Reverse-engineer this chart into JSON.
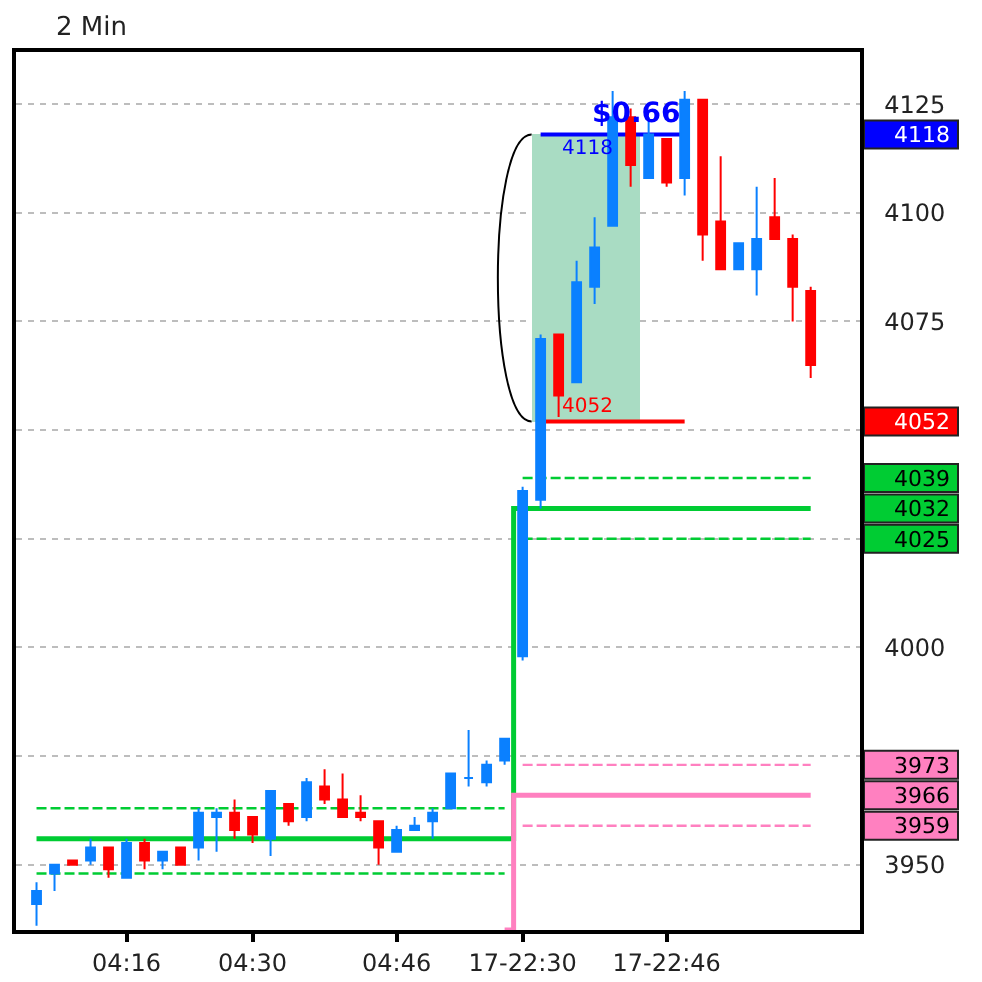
{
  "chart_data": {
    "type": "candlestick",
    "title": "2 Min",
    "categories": [
      null,
      null,
      null,
      null,
      null,
      "04:16",
      null,
      null,
      null,
      null,
      null,
      null,
      "04:30",
      null,
      null,
      null,
      null,
      null,
      null,
      null,
      "04:46",
      null,
      null,
      null,
      null,
      null,
      null,
      "17-22:30",
      null,
      null,
      null,
      null,
      null,
      null,
      null,
      "17-22:46",
      null,
      null,
      null,
      null,
      null,
      null,
      null,
      null
    ],
    "ohlc": [
      [
        3941,
        3946,
        3936,
        3944
      ],
      [
        3948,
        3950,
        3944,
        3950
      ],
      [
        3951,
        3951,
        3950,
        3950
      ],
      [
        3951,
        3956,
        3950,
        3954
      ],
      [
        3954,
        3954,
        3947,
        3949
      ],
      [
        3947,
        3956,
        3947,
        3955
      ],
      [
        3955,
        3956,
        3949,
        3951
      ],
      [
        3951,
        3953,
        3949,
        3953
      ],
      [
        3954,
        3954,
        3950,
        3950
      ],
      [
        3954,
        3963,
        3951,
        3962
      ],
      [
        3961,
        3963,
        3953,
        3962
      ],
      [
        3962,
        3965,
        3956,
        3958
      ],
      [
        3961,
        3961,
        3955,
        3957
      ],
      [
        3956,
        3967,
        3952,
        3967
      ],
      [
        3964,
        3964,
        3959,
        3960
      ],
      [
        3961,
        3970,
        3960,
        3969
      ],
      [
        3968,
        3972,
        3964,
        3965
      ],
      [
        3965,
        3971,
        3961,
        3961
      ],
      [
        3962,
        3966,
        3960,
        3961
      ],
      [
        3960,
        3960,
        3950,
        3954
      ],
      [
        3953,
        3959,
        3953,
        3958
      ],
      [
        3958,
        3961,
        3958,
        3959
      ],
      [
        3960,
        3963,
        3956,
        3962
      ],
      [
        3963,
        3971,
        3963,
        3971
      ],
      [
        3970,
        3981,
        3968,
        3970
      ],
      [
        3969,
        3974,
        3968,
        3973
      ],
      [
        3974,
        3979,
        3973,
        3979
      ],
      [
        3998,
        4037,
        3997,
        4036
      ],
      [
        4034,
        4072,
        4032,
        4071
      ],
      [
        4072,
        4072,
        4053,
        4058
      ],
      [
        4061,
        4089,
        4061,
        4084
      ],
      [
        4083,
        4099,
        4079,
        4092
      ],
      [
        4097,
        4128,
        4097,
        4122
      ],
      [
        4122,
        4124,
        4106,
        4111
      ],
      [
        4108,
        4122,
        4108,
        4118
      ],
      [
        4117,
        4117,
        4106,
        4107
      ],
      [
        4108,
        4128,
        4104,
        4126
      ],
      [
        4126,
        4126,
        4089,
        4095
      ],
      [
        4098,
        4113,
        4087,
        4087
      ],
      [
        4087,
        4093,
        4087,
        4093
      ],
      [
        4087,
        4106,
        4081,
        4094
      ],
      [
        4099,
        4108,
        4094,
        4094
      ],
      [
        4094,
        4095,
        4075,
        4083
      ],
      [
        4082,
        4083,
        4062,
        4065
      ]
    ],
    "colors": [
      "#0a80ff",
      "#0a80ff",
      "#ff0000",
      "#0a80ff",
      "#ff0000",
      "#0a80ff",
      "#ff0000",
      "#0a80ff",
      "#ff0000",
      "#0a80ff",
      "#0a80ff",
      "#ff0000",
      "#ff0000",
      "#0a80ff",
      "#ff0000",
      "#0a80ff",
      "#ff0000",
      "#ff0000",
      "#ff0000",
      "#ff0000",
      "#0a80ff",
      "#0a80ff",
      "#0a80ff",
      "#0a80ff",
      "#0a80ff",
      "#0a80ff",
      "#0a80ff",
      "#0a80ff",
      "#0a80ff",
      "#ff0000",
      "#0a80ff",
      "#0a80ff",
      "#0a80ff",
      "#ff0000",
      "#0a80ff",
      "#ff0000",
      "#0a80ff",
      "#ff0000",
      "#ff0000",
      "#0a80ff",
      "#0a80ff",
      "#ff0000",
      "#ff0000",
      "#ff0000"
    ],
    "series": [
      {
        "type": "bar",
        "color": "#a9dcc3",
        "values": [
          null,
          null,
          null,
          null,
          null,
          null,
          null,
          null,
          null,
          null,
          null,
          null,
          null,
          null,
          null,
          null,
          null,
          null,
          null,
          null,
          null,
          null,
          null,
          null,
          null,
          null,
          null,
          null,
          66,
          66,
          66,
          66,
          66,
          66,
          null,
          null,
          null,
          null,
          null,
          null,
          null,
          null,
          null,
          null
        ],
        "base": [
          null,
          null,
          null,
          null,
          null,
          null,
          null,
          null,
          null,
          null,
          null,
          null,
          null,
          null,
          null,
          null,
          null,
          null,
          null,
          null,
          null,
          null,
          null,
          null,
          null,
          null,
          null,
          null,
          4052,
          4052,
          4052,
          4052,
          4052,
          4052,
          null,
          null,
          null,
          null,
          null,
          null,
          null,
          null,
          null,
          null
        ]
      },
      {
        "type": "step",
        "color": "#00cc33",
        "line_style": "solid",
        "axis": "y2",
        "values": [
          3956,
          3956,
          3956,
          3956,
          3956,
          3956,
          3956,
          3956,
          3956,
          3956,
          3956,
          3956,
          3956,
          3956,
          3956,
          3956,
          3956,
          3956,
          3956,
          3956,
          3956,
          3956,
          3956,
          3956,
          3956,
          3956,
          3956,
          4032,
          4032,
          4032,
          4032,
          4032,
          4032,
          4032,
          4032,
          4032,
          4032,
          4032,
          4032,
          4032,
          4032,
          4032,
          4032,
          4032
        ]
      },
      {
        "type": "line",
        "color": "#00cc33",
        "line_style": "dashed",
        "values": [
          3963,
          3963,
          3963,
          3963,
          3963,
          3963,
          3963,
          3963,
          3963,
          3963,
          3963,
          3963,
          3963,
          3963,
          3963,
          3963,
          3963,
          3963,
          3963,
          3963,
          3963,
          3963,
          3963,
          3963,
          3963,
          3963,
          3963,
          null,
          null,
          null,
          null,
          null,
          null,
          null,
          null,
          null,
          null,
          null,
          null,
          null,
          null,
          null,
          null,
          null
        ]
      },
      {
        "type": "line",
        "color": "#00cc33",
        "line_style": "dashed",
        "values": [
          3948,
          3948,
          3948,
          3948,
          3948,
          3948,
          3948,
          3948,
          3948,
          3948,
          3948,
          3948,
          3948,
          3948,
          3948,
          3948,
          3948,
          3948,
          3948,
          3948,
          3948,
          3948,
          3948,
          3948,
          3948,
          3948,
          3948,
          null,
          null,
          null,
          null,
          null,
          null,
          null,
          null,
          null,
          null,
          null,
          null,
          null,
          null,
          null,
          null,
          null
        ]
      },
      {
        "type": "line",
        "color": "#00cc33",
        "line_style": "dashed",
        "axis": "y2",
        "values": [
          null,
          null,
          null,
          null,
          null,
          null,
          null,
          null,
          null,
          null,
          null,
          null,
          null,
          null,
          null,
          null,
          null,
          null,
          null,
          null,
          null,
          null,
          null,
          null,
          null,
          null,
          null,
          4039,
          4039,
          4039,
          4039,
          4039,
          4039,
          4039,
          4039,
          4039,
          4039,
          4039,
          4039,
          4039,
          4039,
          4039,
          4039,
          4039
        ]
      },
      {
        "type": "line",
        "color": "#00cc33",
        "line_style": "dashed",
        "axis": "y2",
        "values": [
          null,
          null,
          null,
          null,
          null,
          null,
          null,
          null,
          null,
          null,
          null,
          null,
          null,
          null,
          null,
          null,
          null,
          null,
          null,
          null,
          null,
          null,
          null,
          null,
          null,
          null,
          null,
          4025,
          4025,
          4025,
          4025,
          4025,
          4025,
          4025,
          4025,
          4025,
          4025,
          4025,
          4025,
          4025,
          4025,
          4025,
          4025,
          4025
        ]
      },
      {
        "type": "step",
        "color": "#ff80c0",
        "line_style": "solid",
        "axis": "y2",
        "values": [
          null,
          null,
          null,
          null,
          null,
          null,
          null,
          null,
          null,
          null,
          null,
          null,
          null,
          null,
          null,
          null,
          null,
          null,
          null,
          null,
          null,
          null,
          null,
          null,
          null,
          null,
          3935,
          3966,
          3966,
          3966,
          3966,
          3966,
          3966,
          3966,
          3966,
          3966,
          3966,
          3966,
          3966,
          3966,
          3966,
          3966,
          3966,
          3966
        ]
      },
      {
        "type": "line",
        "color": "#ff80c0",
        "line_style": "dashed",
        "axis": "y2",
        "values": [
          null,
          null,
          null,
          null,
          null,
          null,
          null,
          null,
          null,
          null,
          null,
          null,
          null,
          null,
          null,
          null,
          null,
          null,
          null,
          null,
          null,
          null,
          null,
          null,
          null,
          null,
          null,
          3973,
          3973,
          3973,
          3973,
          3973,
          3973,
          3973,
          3973,
          3973,
          3973,
          3973,
          3973,
          3973,
          3973,
          3973,
          3973,
          3973
        ]
      },
      {
        "type": "line",
        "color": "#ff80c0",
        "line_style": "dashed",
        "axis": "y2",
        "values": [
          null,
          null,
          null,
          null,
          null,
          null,
          null,
          null,
          null,
          null,
          null,
          null,
          null,
          null,
          null,
          null,
          null,
          null,
          null,
          null,
          null,
          null,
          null,
          null,
          null,
          null,
          null,
          3959,
          3959,
          3959,
          3959,
          3959,
          3959,
          3959,
          3959,
          3959,
          3959,
          3959,
          3959,
          3959,
          3959,
          3959,
          3959,
          3959
        ]
      },
      {
        "type": "line",
        "color": "#0000ff",
        "line_style": "solid",
        "axis": "y2",
        "values": [
          null,
          null,
          null,
          null,
          null,
          null,
          null,
          null,
          null,
          null,
          null,
          null,
          null,
          null,
          null,
          null,
          null,
          null,
          null,
          null,
          null,
          null,
          null,
          null,
          null,
          null,
          null,
          null,
          4118,
          4118,
          4118,
          4118,
          4118,
          4118,
          4118,
          4118,
          4118,
          null,
          null,
          null,
          null,
          null,
          null,
          null
        ],
        "value_labels": [
          null,
          null,
          null,
          null,
          null,
          null,
          null,
          null,
          null,
          null,
          null,
          null,
          null,
          null,
          null,
          null,
          null,
          null,
          null,
          null,
          null,
          null,
          null,
          null,
          null,
          null,
          null,
          null,
          null,
          "4118",
          null,
          null,
          null,
          null,
          null,
          null,
          null,
          null,
          null,
          null,
          null,
          null,
          null,
          null
        ]
      },
      {
        "type": "line",
        "color": "#ff0000",
        "line_style": "solid",
        "axis": "y2",
        "values": [
          null,
          null,
          null,
          null,
          null,
          null,
          null,
          null,
          null,
          null,
          null,
          null,
          null,
          null,
          null,
          null,
          null,
          null,
          null,
          null,
          null,
          null,
          null,
          null,
          null,
          null,
          null,
          null,
          4052,
          4052,
          4052,
          4052,
          4052,
          4052,
          4052,
          4052,
          4052,
          null,
          null,
          null,
          null,
          null,
          null,
          null
        ],
        "value_labels": [
          null,
          null,
          null,
          null,
          null,
          null,
          null,
          null,
          null,
          null,
          null,
          null,
          null,
          null,
          null,
          null,
          null,
          null,
          null,
          null,
          null,
          null,
          null,
          null,
          null,
          null,
          null,
          null,
          null,
          "4052",
          null,
          null,
          null,
          null,
          null,
          null,
          null,
          null,
          null,
          null,
          null,
          null,
          null,
          null
        ]
      }
    ],
    "annotations": [
      {
        "text": "$0.66",
        "y": 4118
      }
    ],
    "ylim": [
      3935,
      4137
    ],
    "yticks": [
      3950,
      {
        "value": 3975,
        "label": null
      },
      4000,
      {
        "value": 4025,
        "label": null
      },
      {
        "value": 4050,
        "label": null
      },
      4075,
      4100,
      4125
    ],
    "y2lim": [
      3935,
      4137
    ],
    "y2ticks": [
      3959,
      3966,
      3973,
      4025,
      4032,
      4039,
      4052,
      4118
    ],
    "grid": "y"
  }
}
